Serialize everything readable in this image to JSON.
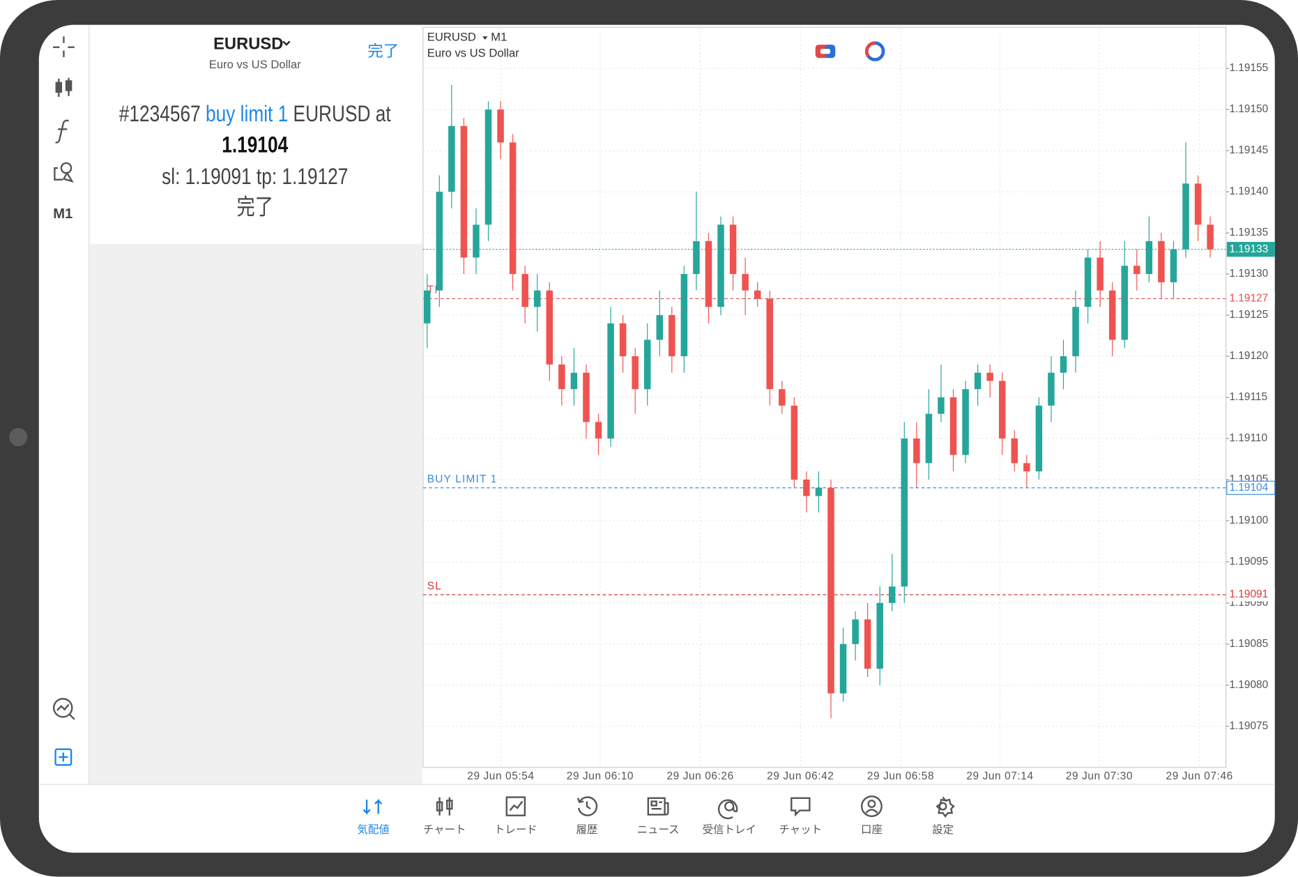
{
  "header": {
    "symbol": "EURUSD",
    "description": "Euro vs US Dollar",
    "done": "完了"
  },
  "order_message": {
    "ticket": "#1234567",
    "order": "buy limit 1",
    "text_after": "EURUSD at",
    "price": "1.19104",
    "sl_tp": "sl: 1.19091 tp: 1.19127",
    "status": "完了"
  },
  "toolbar": {
    "timeframe": "M1"
  },
  "chart_data": {
    "type": "candlestick",
    "symbol": "EURUSD",
    "timeframe": "M1",
    "description": "Euro vs US Dollar",
    "colors": {
      "up": "#26a69a",
      "down": "#ef5350"
    },
    "open": [
      1.19124,
      1.19128,
      1.1914,
      1.19148,
      1.19132,
      1.19136,
      1.1915,
      1.19146,
      1.1913,
      1.19126,
      1.19128,
      1.19119,
      1.19116,
      1.19118,
      1.19112,
      1.1911,
      1.19124,
      1.1912,
      1.19116,
      1.19122,
      1.19125,
      1.1912,
      1.1913,
      1.19134,
      1.19126,
      1.19136,
      1.1913,
      1.19128,
      1.19127,
      1.19116,
      1.19114,
      1.19105,
      1.19103,
      1.19104,
      1.19079,
      1.19085,
      1.19088,
      1.19082,
      1.1909,
      1.19092,
      1.1911,
      1.19107,
      1.19113,
      1.19115,
      1.19108,
      1.19116,
      1.19118,
      1.19117,
      1.1911,
      1.19107,
      1.19106,
      1.19114,
      1.19118,
      1.1912,
      1.19126,
      1.19132,
      1.19128,
      1.19122,
      1.19131,
      1.1913,
      1.19134,
      1.19129,
      1.19133,
      1.19141,
      1.19136
    ],
    "high": [
      1.1913,
      1.19142,
      1.19153,
      1.19149,
      1.19138,
      1.19151,
      1.19151,
      1.19147,
      1.19131,
      1.1913,
      1.19129,
      1.1912,
      1.19121,
      1.19119,
      1.19113,
      1.19126,
      1.19125,
      1.19121,
      1.19124,
      1.19128,
      1.19126,
      1.19131,
      1.1914,
      1.19135,
      1.19137,
      1.19137,
      1.19132,
      1.19129,
      1.19128,
      1.19117,
      1.19115,
      1.19106,
      1.19106,
      1.19105,
      1.19087,
      1.19089,
      1.1909,
      1.19092,
      1.19096,
      1.19112,
      1.19112,
      1.19116,
      1.19119,
      1.19116,
      1.19117,
      1.19119,
      1.19119,
      1.19118,
      1.19111,
      1.19108,
      1.19115,
      1.1912,
      1.19122,
      1.19128,
      1.19133,
      1.19134,
      1.19129,
      1.19134,
      1.19133,
      1.19137,
      1.19135,
      1.19134,
      1.19146,
      1.19142,
      1.19137
    ],
    "low": [
      1.19121,
      1.19126,
      1.19138,
      1.1913,
      1.1913,
      1.19134,
      1.19144,
      1.19128,
      1.19124,
      1.19123,
      1.19117,
      1.19114,
      1.19114,
      1.1911,
      1.19108,
      1.19109,
      1.19118,
      1.19113,
      1.19114,
      1.1912,
      1.19118,
      1.19118,
      1.19128,
      1.19124,
      1.19125,
      1.19128,
      1.19125,
      1.19126,
      1.19114,
      1.19113,
      1.19104,
      1.19101,
      1.19101,
      1.19076,
      1.19078,
      1.19083,
      1.19081,
      1.1908,
      1.19089,
      1.1909,
      1.19104,
      1.19105,
      1.19112,
      1.19106,
      1.19107,
      1.19114,
      1.19115,
      1.19108,
      1.19106,
      1.19104,
      1.19105,
      1.19112,
      1.19116,
      1.19118,
      1.19124,
      1.19126,
      1.1912,
      1.19121,
      1.19128,
      1.19129,
      1.19127,
      1.19127,
      1.19132,
      1.19134,
      1.19132
    ],
    "close": [
      1.19128,
      1.1914,
      1.19148,
      1.19132,
      1.19136,
      1.1915,
      1.19146,
      1.1913,
      1.19126,
      1.19128,
      1.19119,
      1.19116,
      1.19118,
      1.19112,
      1.1911,
      1.19124,
      1.1912,
      1.19116,
      1.19122,
      1.19125,
      1.1912,
      1.1913,
      1.19134,
      1.19126,
      1.19136,
      1.1913,
      1.19128,
      1.19127,
      1.19116,
      1.19114,
      1.19105,
      1.19103,
      1.19104,
      1.19079,
      1.19085,
      1.19088,
      1.19082,
      1.1909,
      1.19092,
      1.1911,
      1.19107,
      1.19113,
      1.19115,
      1.19108,
      1.19116,
      1.19118,
      1.19117,
      1.1911,
      1.19107,
      1.19106,
      1.19114,
      1.19118,
      1.1912,
      1.19126,
      1.19132,
      1.19128,
      1.19122,
      1.19131,
      1.1913,
      1.19134,
      1.19129,
      1.19133,
      1.19141,
      1.19136,
      1.19133
    ],
    "ylim": [
      1.1907,
      1.1916
    ],
    "yticks": [
      {
        "value": 1.19075,
        "label": "1.19075"
      },
      {
        "value": 1.1908,
        "label": "1.19080"
      },
      {
        "value": 1.19085,
        "label": "1.19085"
      },
      {
        "value": 1.1909,
        "label": "1.19090"
      },
      {
        "value": 1.19095,
        "label": "1.19095"
      },
      {
        "value": 1.191,
        "label": "1.19100"
      },
      {
        "value": 1.19105,
        "label": "1.19105"
      },
      {
        "value": 1.1911,
        "label": "1.19110"
      },
      {
        "value": 1.19115,
        "label": "1.19115"
      },
      {
        "value": 1.1912,
        "label": "1.19120"
      },
      {
        "value": 1.19125,
        "label": "1.19125"
      },
      {
        "value": 1.1913,
        "label": "1.19130"
      },
      {
        "value": 1.19135,
        "label": "1.19135"
      },
      {
        "value": 1.1914,
        "label": "1.19140"
      },
      {
        "value": 1.19145,
        "label": "1.19145"
      },
      {
        "value": 1.1915,
        "label": "1.19150"
      },
      {
        "value": 1.19155,
        "label": "1.19155"
      }
    ],
    "xtick_labels": [
      "29 Jun 05:54",
      "29 Jun 06:10",
      "29 Jun 06:26",
      "29 Jun 06:42",
      "29 Jun 06:58",
      "29 Jun 07:14",
      "29 Jun 07:30",
      "29 Jun 07:46"
    ],
    "grid": true,
    "current_price": {
      "value": 1.19133,
      "color": "#26a69a"
    },
    "lines": [
      {
        "name": "TP",
        "value": 1.19127,
        "color": "#e05050",
        "style": "filled"
      },
      {
        "name": "BUY LIMIT 1",
        "value": 1.19104,
        "color": "#3a8de0",
        "style": "boxed"
      },
      {
        "name": "SL",
        "value": 1.19091,
        "color": "#d03a3a",
        "style": "filled"
      }
    ]
  },
  "tabs": [
    {
      "label": "気配値",
      "active": true
    },
    {
      "label": "チャート",
      "active": false
    },
    {
      "label": "トレード",
      "active": false
    },
    {
      "label": "履歴",
      "active": false
    },
    {
      "label": "ニュース",
      "active": false
    },
    {
      "label": "受信トレイ",
      "active": false
    },
    {
      "label": "チャット",
      "active": false
    },
    {
      "label": "口座",
      "active": false
    },
    {
      "label": "設定",
      "active": false
    }
  ]
}
